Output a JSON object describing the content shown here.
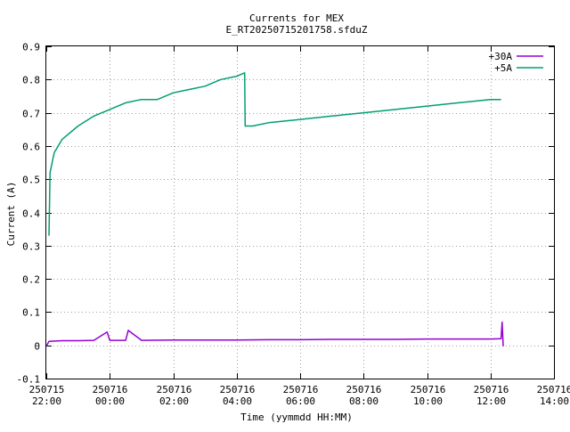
{
  "chart_data": {
    "type": "line",
    "title": "Currents for MEX",
    "subtitle": "E_RT20250715201758.sfduZ",
    "xlabel": "Time (yymmdd HH:MM)",
    "ylabel": "Current (A)",
    "ylim": [
      -0.1,
      0.9
    ],
    "y_ticks": [
      -0.1,
      0,
      0.1,
      0.2,
      0.3,
      0.4,
      0.5,
      0.6,
      0.7,
      0.8,
      0.9
    ],
    "y_tick_labels": [
      "-0.1",
      "0",
      "0.1",
      "0.2",
      "0.3",
      "0.4",
      "0.5",
      "0.6",
      "0.7",
      "0.8",
      "0.9"
    ],
    "xlim_hours_from_first_tick": [
      0,
      16
    ],
    "x_ticks": [
      {
        "date": "250715",
        "time": "22:00"
      },
      {
        "date": "250716",
        "time": "00:00"
      },
      {
        "date": "250716",
        "time": "02:00"
      },
      {
        "date": "250716",
        "time": "04:00"
      },
      {
        "date": "250716",
        "time": "06:00"
      },
      {
        "date": "250716",
        "time": "08:00"
      },
      {
        "date": "250716",
        "time": "10:00"
      },
      {
        "date": "250716",
        "time": "12:00"
      },
      {
        "date": "250716",
        "time": "14:00"
      }
    ],
    "grid": true,
    "legend_position": "top-right",
    "series": [
      {
        "name": "+30A",
        "color": "#9400d3",
        "points": [
          [
            "2025-07-15 22:00",
            -0.003
          ],
          [
            "2025-07-15 22:05",
            0.012
          ],
          [
            "2025-07-15 22:30",
            0.014
          ],
          [
            "2025-07-15 23:00",
            0.014
          ],
          [
            "2025-07-15 23:30",
            0.015
          ],
          [
            "2025-07-15 23:55",
            0.04
          ],
          [
            "2025-07-16 00:00",
            0.015
          ],
          [
            "2025-07-16 00:30",
            0.015
          ],
          [
            "2025-07-16 00:35",
            0.045
          ],
          [
            "2025-07-16 01:00",
            0.015
          ],
          [
            "2025-07-16 02:00",
            0.016
          ],
          [
            "2025-07-16 03:00",
            0.016
          ],
          [
            "2025-07-16 04:00",
            0.016
          ],
          [
            "2025-07-16 05:00",
            0.017
          ],
          [
            "2025-07-16 06:00",
            0.017
          ],
          [
            "2025-07-16 07:00",
            0.018
          ],
          [
            "2025-07-16 08:00",
            0.018
          ],
          [
            "2025-07-16 09:00",
            0.018
          ],
          [
            "2025-07-16 10:00",
            0.019
          ],
          [
            "2025-07-16 11:00",
            0.019
          ],
          [
            "2025-07-16 12:00",
            0.019
          ],
          [
            "2025-07-16 12:20",
            0.02
          ],
          [
            "2025-07-16 12:22",
            0.07
          ],
          [
            "2025-07-16 12:24",
            -0.003
          ]
        ]
      },
      {
        "name": "+5A",
        "color": "#009e73",
        "points": [
          [
            "2025-07-15 22:05",
            0.33
          ],
          [
            "2025-07-15 22:07",
            0.52
          ],
          [
            "2025-07-15 22:15",
            0.58
          ],
          [
            "2025-07-15 22:30",
            0.62
          ],
          [
            "2025-07-15 23:00",
            0.66
          ],
          [
            "2025-07-15 23:30",
            0.69
          ],
          [
            "2025-07-16 00:00",
            0.71
          ],
          [
            "2025-07-16 00:30",
            0.73
          ],
          [
            "2025-07-16 01:00",
            0.74
          ],
          [
            "2025-07-16 01:30",
            0.74
          ],
          [
            "2025-07-16 02:00",
            0.76
          ],
          [
            "2025-07-16 02:30",
            0.77
          ],
          [
            "2025-07-16 03:00",
            0.78
          ],
          [
            "2025-07-16 03:30",
            0.8
          ],
          [
            "2025-07-16 04:00",
            0.81
          ],
          [
            "2025-07-16 04:15",
            0.82
          ],
          [
            "2025-07-16 04:16",
            0.66
          ],
          [
            "2025-07-16 04:30",
            0.66
          ],
          [
            "2025-07-16 05:00",
            0.67
          ],
          [
            "2025-07-16 06:00",
            0.68
          ],
          [
            "2025-07-16 07:00",
            0.69
          ],
          [
            "2025-07-16 08:00",
            0.7
          ],
          [
            "2025-07-16 09:00",
            0.71
          ],
          [
            "2025-07-16 10:00",
            0.72
          ],
          [
            "2025-07-16 11:00",
            0.73
          ],
          [
            "2025-07-16 12:00",
            0.74
          ],
          [
            "2025-07-16 12:20",
            0.74
          ]
        ]
      }
    ]
  }
}
